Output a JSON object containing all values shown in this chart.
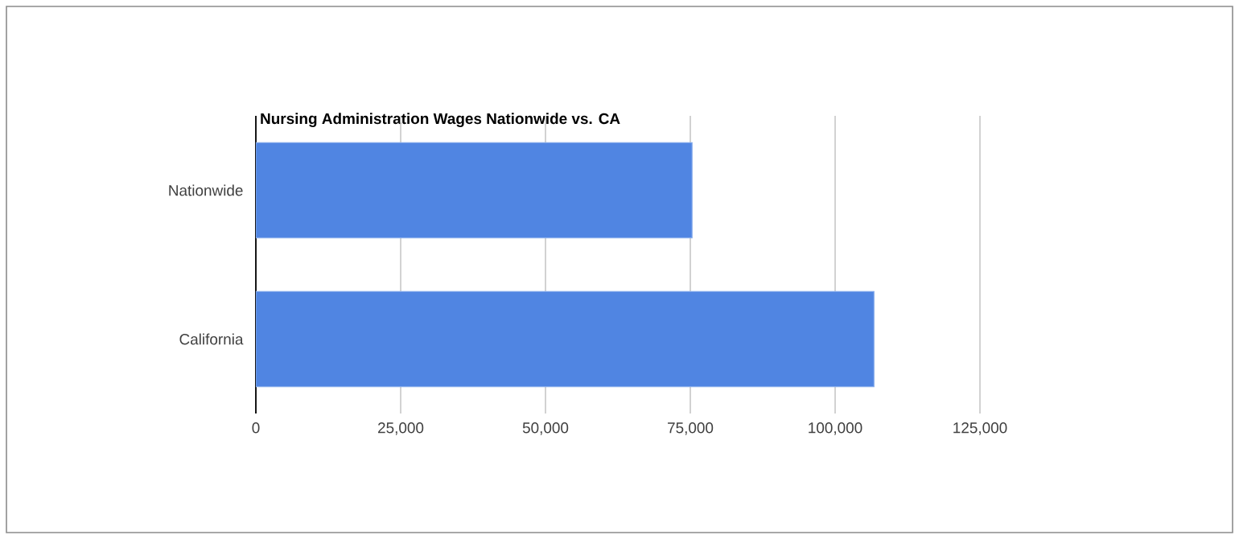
{
  "chart_data": {
    "type": "bar",
    "orientation": "horizontal",
    "title": "Nursing Administration Wages Nationwide vs. CA",
    "categories": [
      "Nationwide",
      "California"
    ],
    "values": [
      75300,
      106700
    ],
    "color": "#5085e2",
    "xlim": [
      0,
      125000
    ],
    "xticks": [
      {
        "value": 0,
        "label": "0"
      },
      {
        "value": 25000,
        "label": "25,000"
      },
      {
        "value": 50000,
        "label": "50,000"
      },
      {
        "value": 75000,
        "label": "75,000"
      },
      {
        "value": 100000,
        "label": "100,000"
      },
      {
        "value": 125000,
        "label": "125,000"
      }
    ],
    "grid": "x"
  }
}
